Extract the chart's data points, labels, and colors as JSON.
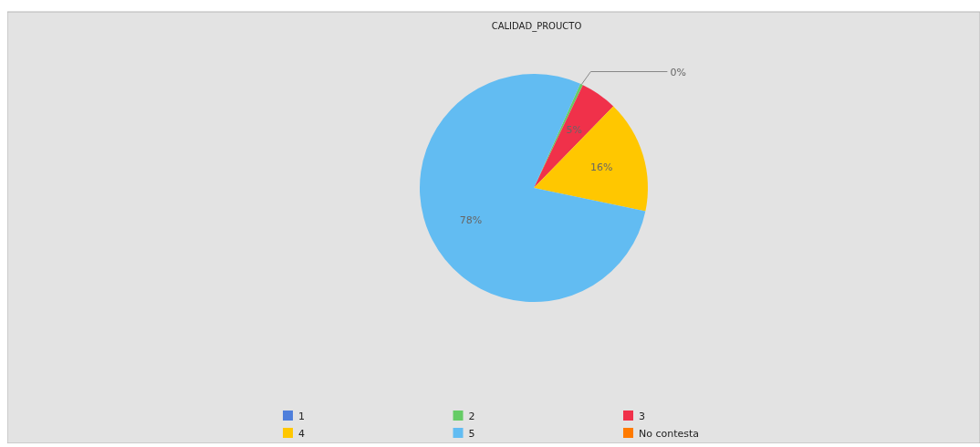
{
  "chart_data": {
    "type": "pie",
    "title": "CALIDAD_PROUCTO",
    "categories": [
      "1",
      "2",
      "3",
      "4",
      "5",
      "No contesta"
    ],
    "values": [
      0,
      0.4,
      5.2,
      16,
      78.4,
      0
    ],
    "colors": [
      "#4f7fdb",
      "#66cc66",
      "#f0314a",
      "#ffc700",
      "#62bcf2",
      "#ff7a00"
    ],
    "value_labels": [
      null,
      "0%",
      "5%",
      "16%",
      "78%",
      null
    ],
    "legend": "bottom"
  }
}
